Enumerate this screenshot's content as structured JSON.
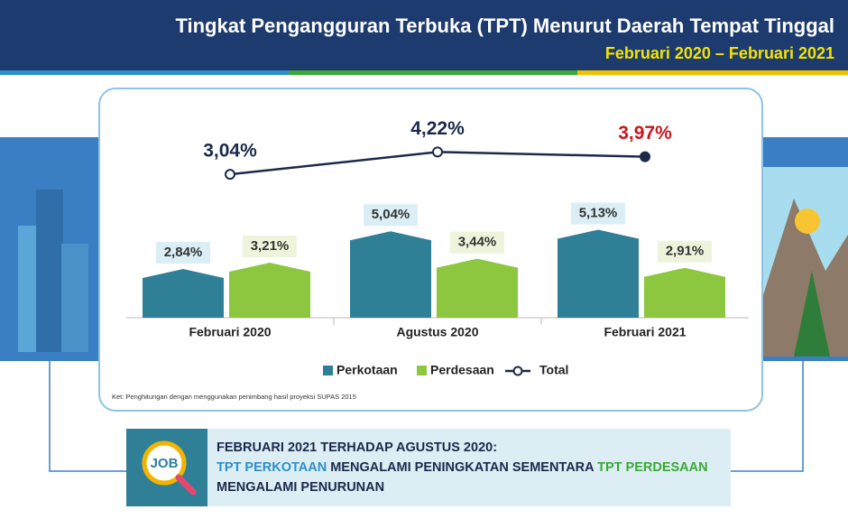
{
  "header": {
    "title": "Tingkat Pengangguran Terbuka (TPT) Menurut Daerah Tempat Tinggal",
    "subtitle": "Februari 2020 – Februari 2021"
  },
  "chart_data": {
    "type": "bar",
    "categories": [
      "Februari 2020",
      "Agustus 2020",
      "Februari 2021"
    ],
    "series": [
      {
        "name": "Perkotaan",
        "color": "#2f7f96",
        "values": [
          2.84,
          5.04,
          5.13
        ],
        "value_labels": [
          "2,84%",
          "5,04%",
          "5,13%"
        ]
      },
      {
        "name": "Perdesaan",
        "color": "#8dc63f",
        "values": [
          3.21,
          3.44,
          2.91
        ],
        "value_labels": [
          "3,21%",
          "3,44%",
          "2,91%"
        ]
      },
      {
        "name": "Total",
        "type": "line",
        "color": "#1b2a4a",
        "values": [
          3.04,
          4.22,
          3.97
        ],
        "value_labels": [
          "3,04%",
          "4,22%",
          "3,97%"
        ],
        "highlight": {
          "index": 2,
          "color": "#c8161d"
        }
      }
    ],
    "note": "Ket: Penghitungan dengan menggunakan penimbang hasil proyeksi SUPAS 2015"
  },
  "callout": {
    "icon": "JOB",
    "heading": "FEBRUARI 2021 TERHADAP AGUSTUS 2020:",
    "part1": "TPT PERKOTAAN",
    "part2": " MENGALAMI PENINGKATAN SEMENTARA ",
    "part3": "TPT PERDESAAN",
    "part4": " MENGALAMI PENURUNAN"
  }
}
